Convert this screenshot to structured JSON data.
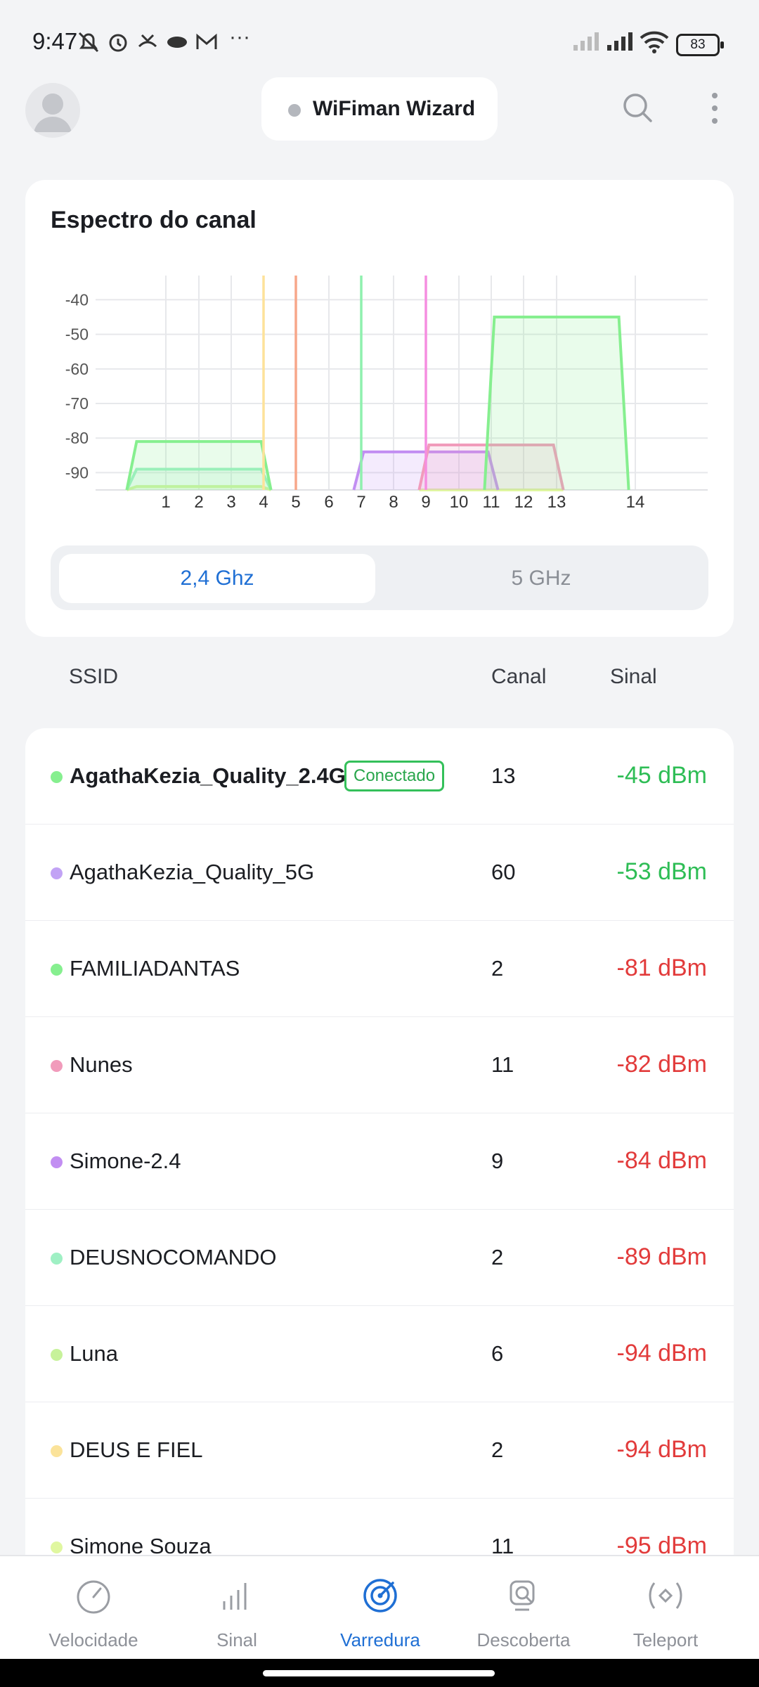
{
  "status": {
    "time": "9:47",
    "battery": "83",
    "more": "···"
  },
  "header": {
    "app_title": "WiFiman Wizard"
  },
  "spectrum": {
    "title": "Espectro do canal",
    "bands": {
      "active": "2,4 Ghz",
      "other": "5 GHz"
    }
  },
  "chart_data": {
    "type": "area",
    "y_ticks": [
      "-40",
      "-50",
      "-60",
      "-70",
      "-80",
      "-90"
    ],
    "x_ticks": [
      "1",
      "2",
      "3",
      "4",
      "5",
      "6",
      "7",
      "8",
      "9",
      "10",
      "11",
      "12",
      "13",
      "14"
    ],
    "ylim": [
      -95,
      -33
    ],
    "grid": true,
    "networks": [
      {
        "channel": 13,
        "dbm": -45,
        "color": "#86ef8f"
      },
      {
        "channel": 2,
        "dbm": -81,
        "color": "#86ef8f"
      },
      {
        "channel": 11,
        "dbm": -82,
        "color": "#f19bbb"
      },
      {
        "channel": 9,
        "dbm": -84,
        "color": "#c28ef2"
      },
      {
        "channel": 2,
        "dbm": -89,
        "color": "#9ff0c4"
      },
      {
        "channel": 2,
        "dbm": -94,
        "color": "#d6f59a"
      },
      {
        "channel": 11,
        "dbm": -95,
        "color": "#e0f7a0"
      }
    ],
    "marker_lines": [
      {
        "channel": 4,
        "color": "#fde29a"
      },
      {
        "channel": 5,
        "color": "#f7a78a"
      },
      {
        "channel": 7,
        "color": "#8ff0ae"
      },
      {
        "channel": 9,
        "color": "#f58ee0"
      }
    ]
  },
  "list": {
    "headers": {
      "ssid": "SSID",
      "channel": "Canal",
      "signal": "Sinal"
    },
    "connected_label": "Conectado",
    "rows": [
      {
        "ssid": "AgathaKezia_Quality_2.4G",
        "channel": "13",
        "signal": "-45 dBm",
        "dot": "#86ef8f",
        "quality": "good"
      },
      {
        "ssid": "AgathaKezia_Quality_5G",
        "channel": "60",
        "signal": "-53 dBm",
        "dot": "#c2a3f5",
        "quality": "good"
      },
      {
        "ssid": "FAMILIADANTAS",
        "channel": "2",
        "signal": "-81 dBm",
        "dot": "#86ef8f",
        "quality": "bad"
      },
      {
        "ssid": "Nunes",
        "channel": "11",
        "signal": "-82 dBm",
        "dot": "#f19bbb",
        "quality": "bad"
      },
      {
        "ssid": "Simone-2.4",
        "channel": "9",
        "signal": "-84 dBm",
        "dot": "#c28ef2",
        "quality": "bad"
      },
      {
        "ssid": "DEUSNOCOMANDO",
        "channel": "2",
        "signal": "-89 dBm",
        "dot": "#9ff0c4",
        "quality": "bad"
      },
      {
        "ssid": "Luna",
        "channel": "6",
        "signal": "-94 dBm",
        "dot": "#c7f29a",
        "quality": "bad"
      },
      {
        "ssid": "DEUS E FIEL",
        "channel": "2",
        "signal": "-94 dBm",
        "dot": "#fbe39a",
        "quality": "bad"
      },
      {
        "ssid": "Simone Souza",
        "channel": "11",
        "signal": "-95 dBm",
        "dot": "#e0f7a0",
        "quality": "bad"
      }
    ]
  },
  "nav": {
    "items": [
      {
        "label": "Velocidade",
        "icon": "speedometer-icon"
      },
      {
        "label": "Sinal",
        "icon": "signal-bars-icon"
      },
      {
        "label": "Varredura",
        "icon": "radar-scan-icon"
      },
      {
        "label": "Descoberta",
        "icon": "discovery-search-icon"
      },
      {
        "label": "Teleport",
        "icon": "teleport-icon"
      }
    ],
    "active": "Varredura"
  }
}
